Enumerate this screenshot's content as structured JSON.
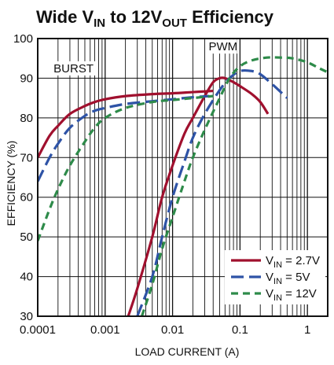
{
  "chart_data": {
    "type": "line",
    "title": {
      "prefix": "Wide V",
      "sub1": "IN",
      "middle": " to 12V",
      "sub2": "OUT",
      "suffix": " Efficiency"
    },
    "xlabel": "LOAD CURRENT (A)",
    "ylabel": "EFFICIENCY (%)",
    "x_scale": "log",
    "xlim": [
      0.0001,
      2
    ],
    "ylim": [
      30,
      100
    ],
    "x_ticks": [
      {
        "value": 0.0001,
        "label": "0.0001"
      },
      {
        "value": 0.001,
        "label": "0.001"
      },
      {
        "value": 0.01,
        "label": "0.01"
      },
      {
        "value": 0.1,
        "label": "0.1"
      },
      {
        "value": 1,
        "label": "1"
      }
    ],
    "y_ticks": [
      {
        "value": 30,
        "label": "30"
      },
      {
        "value": 40,
        "label": "40"
      },
      {
        "value": 50,
        "label": "50"
      },
      {
        "value": 60,
        "label": "60"
      },
      {
        "value": 70,
        "label": "70"
      },
      {
        "value": 80,
        "label": "80"
      },
      {
        "value": 90,
        "label": "90"
      },
      {
        "value": 100,
        "label": "100"
      }
    ],
    "grid": true,
    "legend_position": "bottom-right",
    "annotations": [
      {
        "text": "BURST",
        "x": 0.00034,
        "y": 91.5
      },
      {
        "text": "PWM",
        "x": 0.056,
        "y": 97
      }
    ],
    "series": [
      {
        "legend_main": "V",
        "legend_sub": "IN",
        "legend_value": " = 2.7V",
        "color": "#a0102e",
        "dash": "solid",
        "burst": [
          [
            0.0001,
            70
          ],
          [
            0.00015,
            75.5
          ],
          [
            0.0002,
            78
          ],
          [
            0.0003,
            81
          ],
          [
            0.0005,
            83
          ],
          [
            0.0007,
            84
          ],
          [
            0.001,
            84.7
          ],
          [
            0.002,
            85.5
          ],
          [
            0.005,
            86
          ],
          [
            0.01,
            86.2
          ],
          [
            0.02,
            86.5
          ],
          [
            0.04,
            86.8
          ]
        ],
        "pwm": [
          [
            0.0022,
            30
          ],
          [
            0.003,
            37
          ],
          [
            0.005,
            50
          ],
          [
            0.007,
            60
          ],
          [
            0.01,
            68
          ],
          [
            0.015,
            76
          ],
          [
            0.02,
            80
          ],
          [
            0.03,
            85.5
          ],
          [
            0.04,
            89
          ],
          [
            0.05,
            90
          ],
          [
            0.06,
            90
          ],
          [
            0.08,
            89
          ],
          [
            0.1,
            88
          ],
          [
            0.15,
            86
          ],
          [
            0.2,
            84
          ],
          [
            0.26,
            81
          ]
        ]
      },
      {
        "legend_main": "V",
        "legend_sub": "IN",
        "legend_value": " = 5V",
        "color": "#2e53a6",
        "dash": "dash",
        "burst": [
          [
            0.0001,
            64
          ],
          [
            0.00015,
            70
          ],
          [
            0.0002,
            73.5
          ],
          [
            0.0003,
            77.5
          ],
          [
            0.0005,
            80.5
          ],
          [
            0.0007,
            81.8
          ],
          [
            0.001,
            82.5
          ],
          [
            0.002,
            83.5
          ],
          [
            0.005,
            84.2
          ],
          [
            0.01,
            84.7
          ],
          [
            0.02,
            85.2
          ],
          [
            0.035,
            85.5
          ]
        ],
        "pwm": [
          [
            0.003,
            30
          ],
          [
            0.005,
            40
          ],
          [
            0.007,
            50
          ],
          [
            0.01,
            60
          ],
          [
            0.015,
            69
          ],
          [
            0.02,
            75
          ],
          [
            0.03,
            81
          ],
          [
            0.05,
            87
          ],
          [
            0.07,
            90
          ],
          [
            0.1,
            91.8
          ],
          [
            0.15,
            91.8
          ],
          [
            0.2,
            91
          ],
          [
            0.3,
            88.5
          ],
          [
            0.5,
            85
          ]
        ]
      },
      {
        "legend_main": "V",
        "legend_sub": "IN",
        "legend_value": " = 12V",
        "color": "#2e8b4a",
        "dash": "shortdash",
        "burst": [
          [
            0.0001,
            49
          ],
          [
            0.00015,
            57
          ],
          [
            0.0002,
            62
          ],
          [
            0.0003,
            68
          ],
          [
            0.0005,
            74
          ],
          [
            0.0007,
            77.5
          ],
          [
            0.001,
            80
          ],
          [
            0.002,
            82.5
          ],
          [
            0.005,
            84
          ],
          [
            0.01,
            84.5
          ],
          [
            0.02,
            85
          ],
          [
            0.04,
            85.5
          ]
        ],
        "pwm": [
          [
            0.0035,
            30
          ],
          [
            0.005,
            38
          ],
          [
            0.007,
            47
          ],
          [
            0.01,
            55
          ],
          [
            0.015,
            64
          ],
          [
            0.02,
            70
          ],
          [
            0.03,
            77
          ],
          [
            0.05,
            85
          ],
          [
            0.07,
            90
          ],
          [
            0.1,
            93
          ],
          [
            0.15,
            94.5
          ],
          [
            0.25,
            95.2
          ],
          [
            0.4,
            95.2
          ],
          [
            0.6,
            95
          ],
          [
            1,
            94
          ],
          [
            1.5,
            92.5
          ],
          [
            2,
            91.5
          ]
        ]
      }
    ]
  }
}
